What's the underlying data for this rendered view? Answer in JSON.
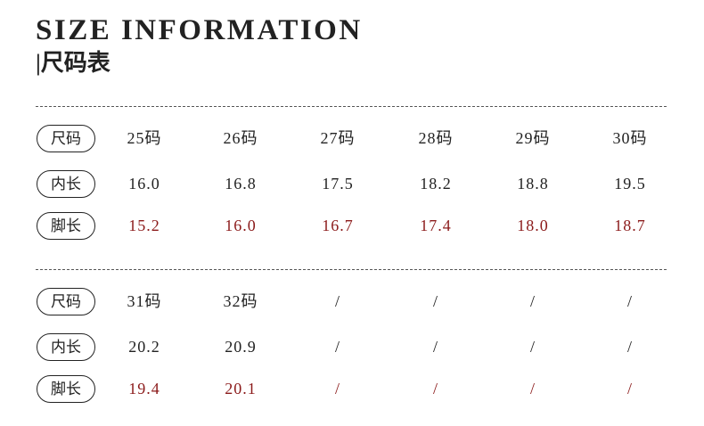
{
  "header": {
    "title": "SIZE INFORMATION",
    "subtitle": "|尺码表"
  },
  "tables": [
    {
      "rows": [
        {
          "label": "尺码",
          "cells": [
            "25码",
            "26码",
            "27码",
            "28码",
            "29码",
            "30码"
          ]
        },
        {
          "label": "内长",
          "cells": [
            "16.0",
            "16.8",
            "17.5",
            "18.2",
            "18.8",
            "19.5"
          ]
        },
        {
          "label": "脚长",
          "cells": [
            "15.2",
            "16.0",
            "16.7",
            "17.4",
            "18.0",
            "18.7"
          ]
        }
      ]
    },
    {
      "rows": [
        {
          "label": "尺码",
          "cells": [
            "31码",
            "32码",
            "/",
            "/",
            "/",
            "/"
          ]
        },
        {
          "label": "内长",
          "cells": [
            "20.2",
            "20.9",
            "/",
            "/",
            "/",
            "/"
          ]
        },
        {
          "label": "脚长",
          "cells": [
            "19.4",
            "20.1",
            "/",
            "/",
            "/",
            "/"
          ]
        }
      ]
    }
  ]
}
